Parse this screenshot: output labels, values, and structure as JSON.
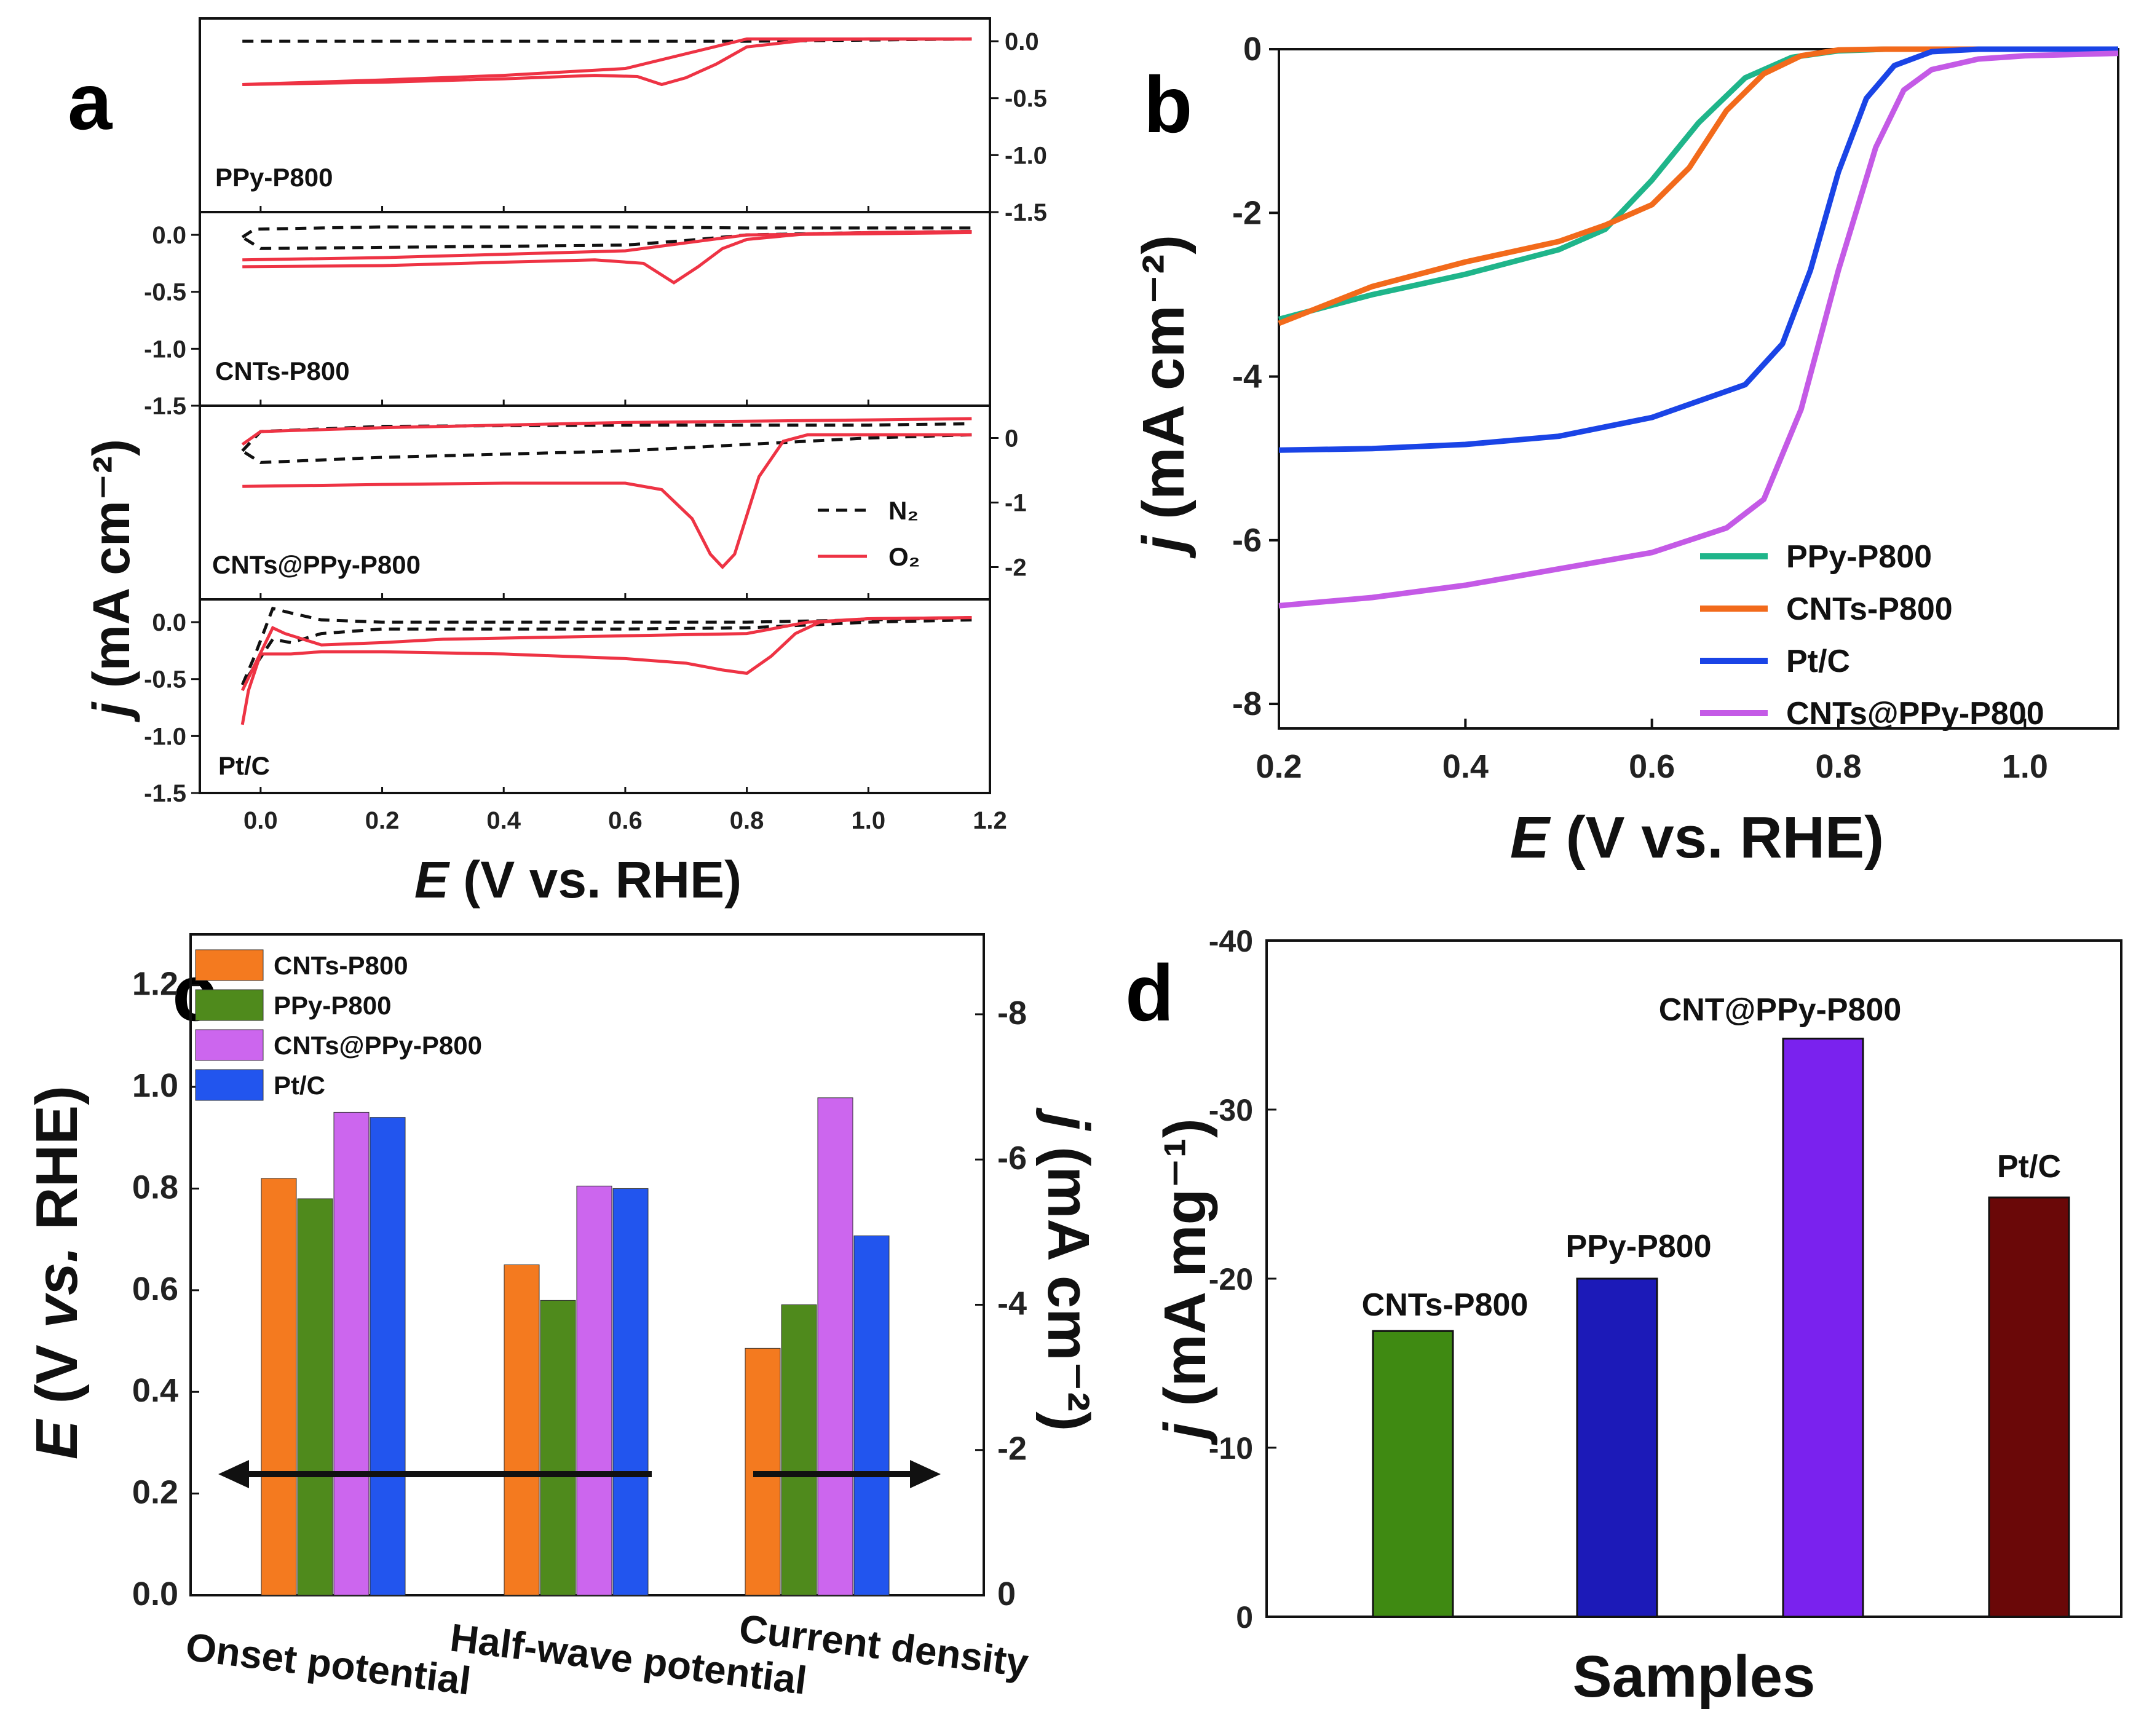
{
  "panels": [
    {
      "id": "a",
      "label": "a",
      "type": "line",
      "title": "",
      "xlabel_italic": "E",
      "xlabel_rest": " (V vs. RHE)",
      "ylabel_italic": "j",
      "ylabel_rest": " (mA cm⁻²)",
      "xlim": [
        -0.1,
        1.2
      ],
      "xticks": [
        "0.0",
        "0.2",
        "0.4",
        "0.6",
        "0.8",
        "1.0",
        "1.2"
      ],
      "xtick_values": [
        0.0,
        0.2,
        0.4,
        0.6,
        0.8,
        1.0,
        1.2
      ],
      "legend": [
        {
          "name": "N₂",
          "color": "#111111",
          "dash": true
        },
        {
          "name": "O₂",
          "color": "#ee3344",
          "dash": false
        }
      ],
      "subplots": [
        {
          "name": "PPy-P800",
          "yaxis_side": "right",
          "ylim": [
            -1.5,
            0.2
          ],
          "yticks": [
            "0.0",
            "-0.5",
            "-1.0",
            "-1.5"
          ],
          "ytick_values": [
            0.0,
            -0.5,
            -1.0,
            -1.5
          ],
          "n2_series": [
            {
              "x": [
                -0.03,
                0.2,
                0.4,
                0.6,
                0.8,
                1.0,
                1.17
              ],
              "y": [
                0.0,
                0.0,
                0.0,
                0.0,
                0.0,
                0.01,
                0.02
              ]
            }
          ],
          "o2_series": [
            {
              "x": [
                -0.03,
                0.2,
                0.4,
                0.55,
                0.62,
                0.66,
                0.7,
                0.75,
                0.8,
                0.9,
                1.0,
                1.17
              ],
              "y": [
                -0.38,
                -0.36,
                -0.33,
                -0.3,
                -0.31,
                -0.38,
                -0.32,
                -0.2,
                -0.05,
                0.01,
                0.02,
                0.02
              ]
            },
            {
              "x": [
                1.17,
                1.0,
                0.8,
                0.6,
                0.4,
                0.2,
                -0.03
              ],
              "y": [
                0.02,
                0.02,
                0.02,
                -0.24,
                -0.3,
                -0.34,
                -0.38
              ]
            }
          ]
        },
        {
          "name": "CNTs-P800",
          "yaxis_side": "left",
          "ylim": [
            -1.5,
            0.2
          ],
          "yticks": [
            "0.0",
            "-0.5",
            "-1.0",
            "-1.5"
          ],
          "ytick_values": [
            0.0,
            -0.5,
            -1.0,
            -1.5
          ],
          "n2_series": [
            {
              "x": [
                -0.03,
                -0.01,
                0.2,
                0.4,
                0.6,
                0.8,
                1.0,
                1.17
              ],
              "y": [
                -0.02,
                0.05,
                0.07,
                0.07,
                0.07,
                0.06,
                0.06,
                0.06
              ]
            },
            {
              "x": [
                1.17,
                1.0,
                0.8,
                0.7,
                0.6,
                0.4,
                0.2,
                0.0,
                -0.03
              ],
              "y": [
                0.03,
                0.02,
                0.0,
                -0.05,
                -0.09,
                -0.1,
                -0.11,
                -0.12,
                -0.02
              ]
            }
          ],
          "o2_series": [
            {
              "x": [
                -0.03,
                0.2,
                0.4,
                0.55,
                0.63,
                0.68,
                0.72,
                0.76,
                0.8,
                0.9,
                1.0,
                1.17
              ],
              "y": [
                -0.28,
                -0.27,
                -0.24,
                -0.22,
                -0.25,
                -0.42,
                -0.28,
                -0.12,
                -0.04,
                0.01,
                0.02,
                0.03
              ]
            },
            {
              "x": [
                1.17,
                1.0,
                0.8,
                0.6,
                0.4,
                0.2,
                -0.03
              ],
              "y": [
                0.02,
                0.01,
                0.0,
                -0.14,
                -0.17,
                -0.2,
                -0.22
              ]
            }
          ]
        },
        {
          "name": "CNTs@PPy-P800",
          "yaxis_side": "right",
          "ylim": [
            -2.5,
            0.5
          ],
          "yticks": [
            "0",
            "-1",
            "-2"
          ],
          "ytick_values": [
            0,
            -1,
            -2
          ],
          "n2_series": [
            {
              "x": [
                -0.03,
                0.0,
                0.2,
                0.4,
                0.6,
                0.8,
                0.9,
                1.0,
                1.17
              ],
              "y": [
                -0.2,
                0.1,
                0.18,
                0.19,
                0.2,
                0.2,
                0.2,
                0.2,
                0.22
              ]
            },
            {
              "x": [
                1.17,
                1.0,
                0.8,
                0.7,
                0.6,
                0.4,
                0.2,
                0.0,
                -0.03
              ],
              "y": [
                0.05,
                0.0,
                -0.1,
                -0.15,
                -0.2,
                -0.25,
                -0.3,
                -0.38,
                -0.2
              ]
            }
          ],
          "o2_series": [
            {
              "x": [
                -0.03,
                0.2,
                0.4,
                0.6,
                0.66,
                0.71,
                0.74,
                0.76,
                0.78,
                0.8,
                0.82,
                0.86,
                0.9,
                1.0,
                1.17
              ],
              "y": [
                -0.75,
                -0.72,
                -0.7,
                -0.7,
                -0.8,
                -1.25,
                -1.8,
                -2.0,
                -1.8,
                -1.2,
                -0.6,
                -0.05,
                0.05,
                0.05,
                0.05
              ]
            },
            {
              "x": [
                1.17,
                1.0,
                0.8,
                0.6,
                0.4,
                0.2,
                0.0,
                -0.03
              ],
              "y": [
                0.3,
                0.28,
                0.26,
                0.24,
                0.2,
                0.16,
                0.1,
                -0.1
              ]
            }
          ]
        },
        {
          "name": "Pt/C",
          "yaxis_side": "left",
          "ylim": [
            -1.5,
            0.2
          ],
          "yticks": [
            "0.0",
            "-0.5",
            "-1.0",
            "-1.5"
          ],
          "ytick_values": [
            0.0,
            -0.5,
            -1.0,
            -1.5
          ],
          "n2_series": [
            {
              "x": [
                -0.03,
                -0.01,
                0.02,
                0.05,
                0.1,
                0.2,
                0.4,
                0.6,
                0.8,
                1.0,
                1.17
              ],
              "y": [
                -0.55,
                -0.3,
                0.12,
                0.08,
                0.02,
                0.0,
                0.0,
                0.0,
                0.0,
                0.02,
                0.04
              ]
            },
            {
              "x": [
                1.17,
                1.0,
                0.8,
                0.6,
                0.4,
                0.2,
                0.1,
                0.05,
                0.02,
                -0.03
              ],
              "y": [
                0.02,
                0.0,
                -0.05,
                -0.06,
                -0.06,
                -0.06,
                -0.1,
                -0.18,
                -0.15,
                -0.55
              ]
            }
          ],
          "o2_series": [
            {
              "x": [
                -0.03,
                -0.02,
                0.0,
                0.05,
                0.1,
                0.2,
                0.4,
                0.6,
                0.7,
                0.76,
                0.8,
                0.84,
                0.88,
                0.92,
                1.0,
                1.17
              ],
              "y": [
                -0.9,
                -0.6,
                -0.28,
                -0.28,
                -0.26,
                -0.26,
                -0.28,
                -0.32,
                -0.36,
                -0.42,
                -0.45,
                -0.3,
                -0.1,
                0.0,
                0.03,
                0.04
              ]
            },
            {
              "x": [
                1.17,
                1.0,
                0.9,
                0.8,
                0.6,
                0.4,
                0.3,
                0.2,
                0.1,
                0.04,
                0.02,
                -0.03
              ],
              "y": [
                0.04,
                0.03,
                0.0,
                -0.1,
                -0.12,
                -0.14,
                -0.15,
                -0.18,
                -0.2,
                -0.1,
                -0.05,
                -0.6
              ]
            }
          ]
        }
      ]
    },
    {
      "id": "b",
      "label": "b",
      "type": "line",
      "xlabel_italic": "E",
      "xlabel_rest": " (V vs. RHE)",
      "ylabel_italic": "j",
      "ylabel_rest": " (mA cm⁻²)",
      "xlim": [
        0.2,
        1.1
      ],
      "ylim": [
        -8.3,
        0
      ],
      "xticks": [
        "0.2",
        "0.4",
        "0.6",
        "0.8",
        "1.0"
      ],
      "xtick_values": [
        0.2,
        0.4,
        0.6,
        0.8,
        1.0
      ],
      "yticks": [
        "0",
        "-2",
        "-4",
        "-6",
        "-8"
      ],
      "ytick_values": [
        0,
        -2,
        -4,
        -6,
        -8
      ],
      "series": [
        {
          "name": "PPy-P800",
          "color": "#1fb58a",
          "x": [
            0.2,
            0.3,
            0.4,
            0.5,
            0.55,
            0.6,
            0.65,
            0.7,
            0.75,
            0.8,
            0.85,
            1.1
          ],
          "y": [
            -3.3,
            -3.0,
            -2.75,
            -2.45,
            -2.2,
            -1.6,
            -0.9,
            -0.35,
            -0.1,
            -0.02,
            0.0,
            0.0
          ]
        },
        {
          "name": "CNTs-P800",
          "color": "#f26a1b",
          "x": [
            0.2,
            0.3,
            0.4,
            0.5,
            0.55,
            0.6,
            0.64,
            0.68,
            0.72,
            0.76,
            0.8,
            0.85,
            1.1
          ],
          "y": [
            -3.35,
            -2.9,
            -2.6,
            -2.35,
            -2.15,
            -1.9,
            -1.45,
            -0.75,
            -0.3,
            -0.08,
            -0.01,
            0.0,
            0.0
          ]
        },
        {
          "name": "Pt/C",
          "color": "#1a44e6",
          "x": [
            0.2,
            0.3,
            0.4,
            0.5,
            0.6,
            0.7,
            0.74,
            0.77,
            0.8,
            0.83,
            0.86,
            0.9,
            0.95,
            1.1
          ],
          "y": [
            -4.9,
            -4.88,
            -4.83,
            -4.73,
            -4.5,
            -4.1,
            -3.6,
            -2.7,
            -1.5,
            -0.6,
            -0.2,
            -0.03,
            0.0,
            0.0
          ]
        },
        {
          "name": "CNTs@PPy-P800",
          "color": "#c45ae6",
          "x": [
            0.2,
            0.3,
            0.4,
            0.5,
            0.6,
            0.68,
            0.72,
            0.76,
            0.8,
            0.84,
            0.87,
            0.9,
            0.95,
            1.0,
            1.1
          ],
          "y": [
            -6.8,
            -6.7,
            -6.55,
            -6.35,
            -6.15,
            -5.85,
            -5.5,
            -4.4,
            -2.7,
            -1.2,
            -0.5,
            -0.25,
            -0.12,
            -0.08,
            -0.05
          ]
        }
      ]
    },
    {
      "id": "c",
      "label": "c",
      "type": "bar",
      "ylabel_left_italic_prefix": "E",
      "ylabel_left_rest": " (V ",
      "ylabel_left_italic_mid": "vs.",
      "ylabel_left_end": " RHE)",
      "ylabel_right_italic": "j",
      "ylabel_right_rest": " (mA cm⁻²)",
      "categories": [
        "Onset potential",
        "Half-wave potential",
        "Current density"
      ],
      "ylim_left": [
        0,
        1.3
      ],
      "yticks_left": [
        "0.0",
        "0.2",
        "0.4",
        "0.6",
        "0.8",
        "1.0",
        "1.2"
      ],
      "ytick_values_left": [
        0.0,
        0.2,
        0.4,
        0.6,
        0.8,
        1.0,
        1.2
      ],
      "ylim_right": [
        0,
        -9.1
      ],
      "yticks_right": [
        "0",
        "-2",
        "-4",
        "-6",
        "-8"
      ],
      "ytick_values_right": [
        0,
        -2,
        -4,
        -6,
        -8
      ],
      "series": [
        {
          "name": "CNTs-P800",
          "color": "#f47a1f",
          "values": [
            0.82,
            0.65,
            -3.4
          ]
        },
        {
          "name": "PPy-P800",
          "color": "#4f8a1c",
          "values": [
            0.78,
            0.58,
            -4.0
          ]
        },
        {
          "name": "CNTs@PPy-P800",
          "color": "#cc66ee",
          "values": [
            0.95,
            0.805,
            -6.85
          ]
        },
        {
          "name": "Pt/C",
          "color": "#2255ee",
          "values": [
            0.94,
            0.8,
            -4.95
          ]
        }
      ]
    },
    {
      "id": "d",
      "label": "d",
      "type": "bar",
      "xlabel": "Samples",
      "ylabel_italic": "j",
      "ylabel_rest": " (mA mg⁻¹)",
      "ylim": [
        0,
        -40
      ],
      "yticks": [
        "0",
        "-10",
        "-20",
        "-30",
        "-40"
      ],
      "ytick_values": [
        0,
        -10,
        -20,
        -30,
        -40
      ],
      "series": [
        {
          "name": "CNTs-P800",
          "color": "#3f8a12",
          "value": -16.9
        },
        {
          "name": "PPy-P800",
          "color": "#1c1ab8",
          "value": -20.0
        },
        {
          "name": "CNT@PPy-P800",
          "color": "#7a22ee",
          "value": -34.2
        },
        {
          "name": "Pt/C",
          "color": "#6a0808",
          "value": -24.8
        }
      ]
    }
  ]
}
